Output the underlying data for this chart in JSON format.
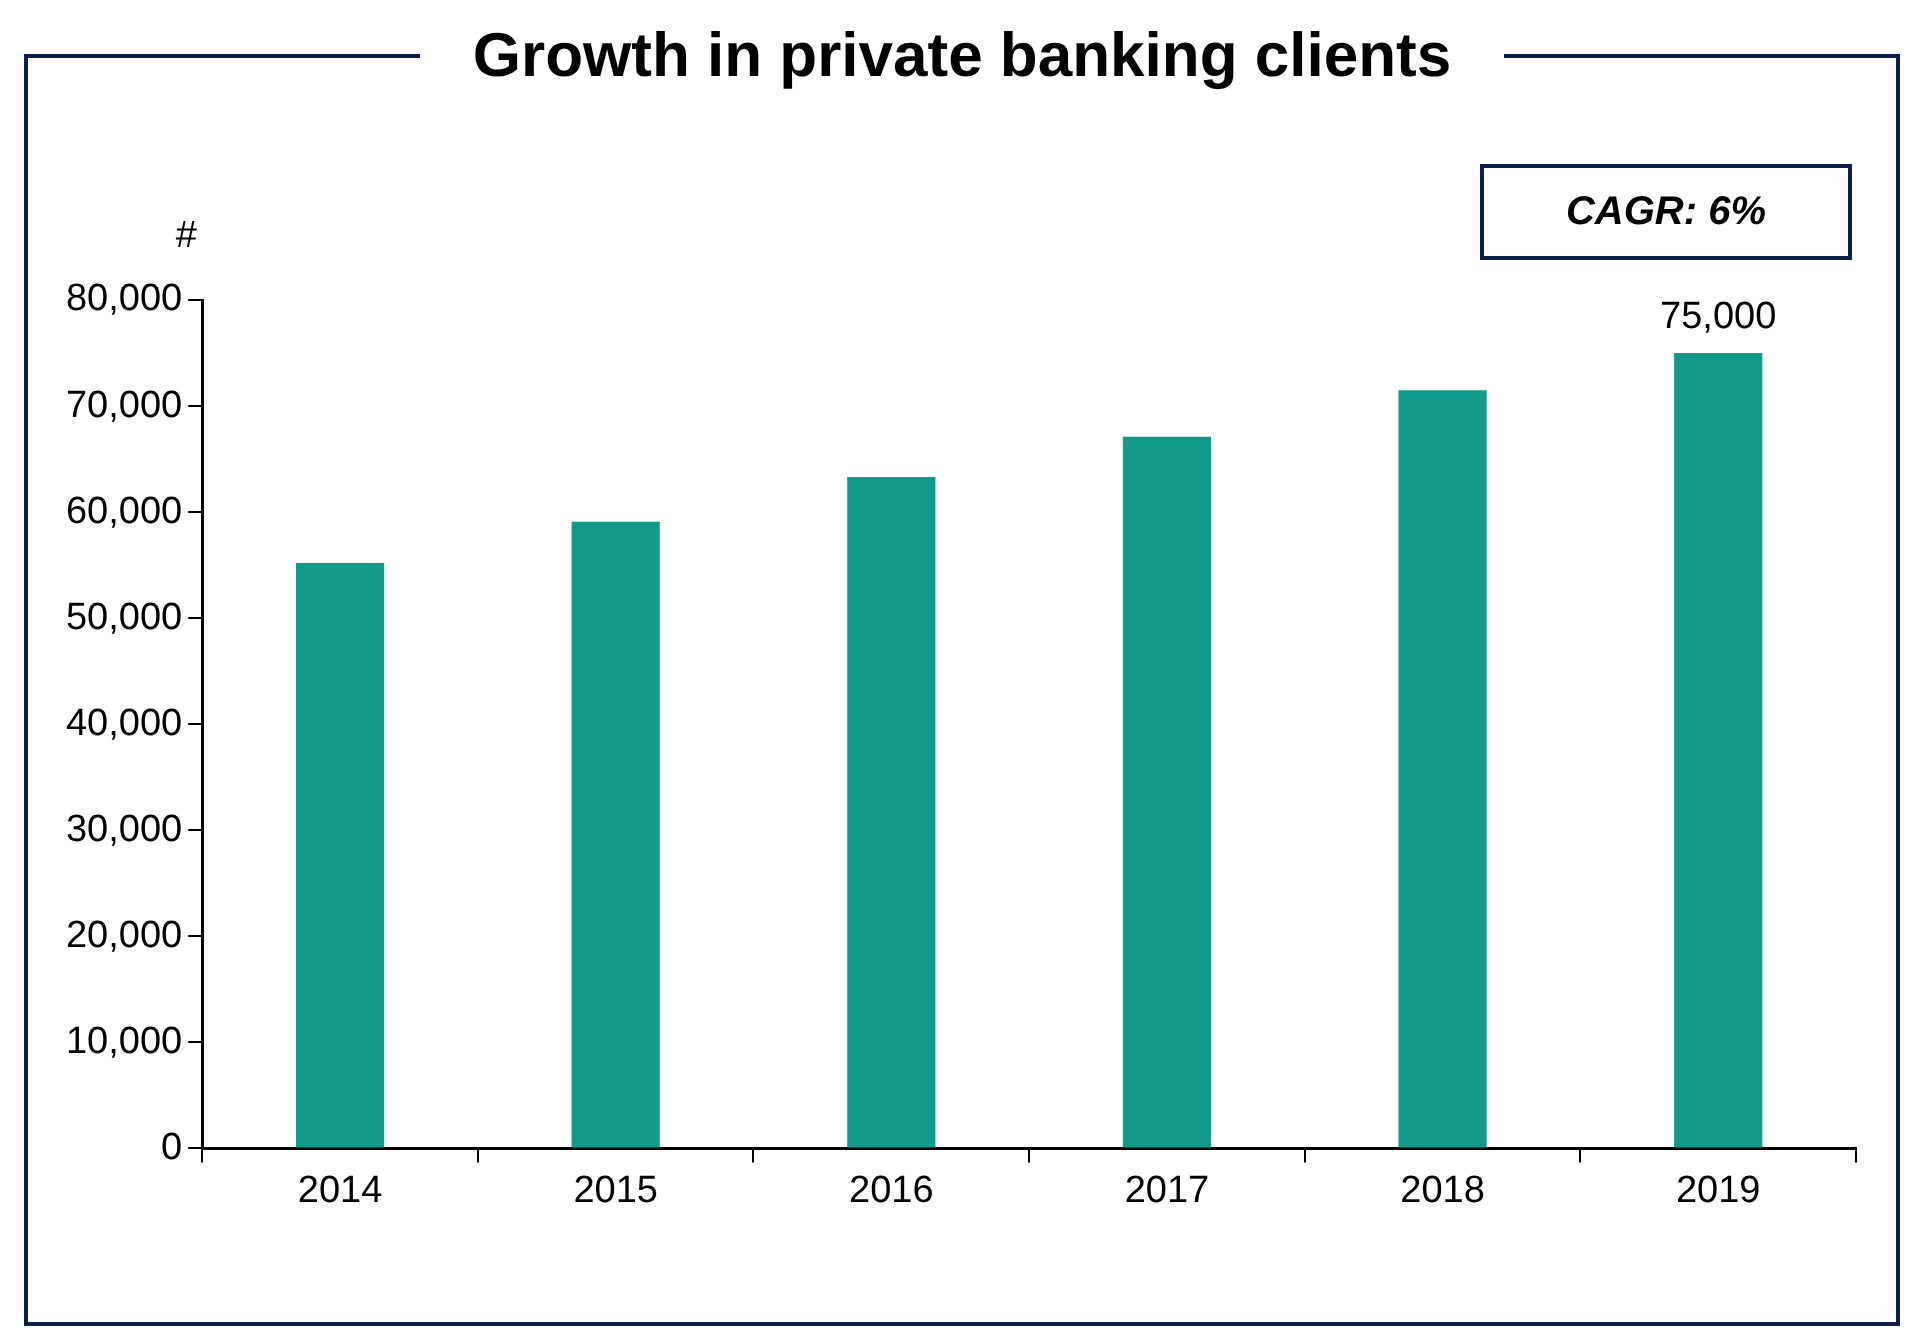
{
  "chart_data": {
    "type": "bar",
    "title": "Growth in private banking clients",
    "ylabel": "#",
    "categories": [
      "2014",
      "2015",
      "2016",
      "2017",
      "2018",
      "2019"
    ],
    "values": [
      55200,
      59100,
      63300,
      67100,
      71500,
      75000
    ],
    "value_labels": [
      null,
      null,
      null,
      null,
      null,
      "75,000"
    ],
    "color": "#11998a",
    "ylim": [
      0,
      80000
    ],
    "yticks": [
      {
        "value": 0,
        "label": "0"
      },
      {
        "value": 10000,
        "label": "10,000"
      },
      {
        "value": 20000,
        "label": "20,000"
      },
      {
        "value": 30000,
        "label": "30,000"
      },
      {
        "value": 40000,
        "label": "40,000"
      },
      {
        "value": 50000,
        "label": "50,000"
      },
      {
        "value": 60000,
        "label": "60,000"
      },
      {
        "value": 70000,
        "label": "70,000"
      },
      {
        "value": 80000,
        "label": "80,000"
      }
    ],
    "annotations": [
      "CAGR: 6%"
    ],
    "grid": false,
    "legend": false
  }
}
